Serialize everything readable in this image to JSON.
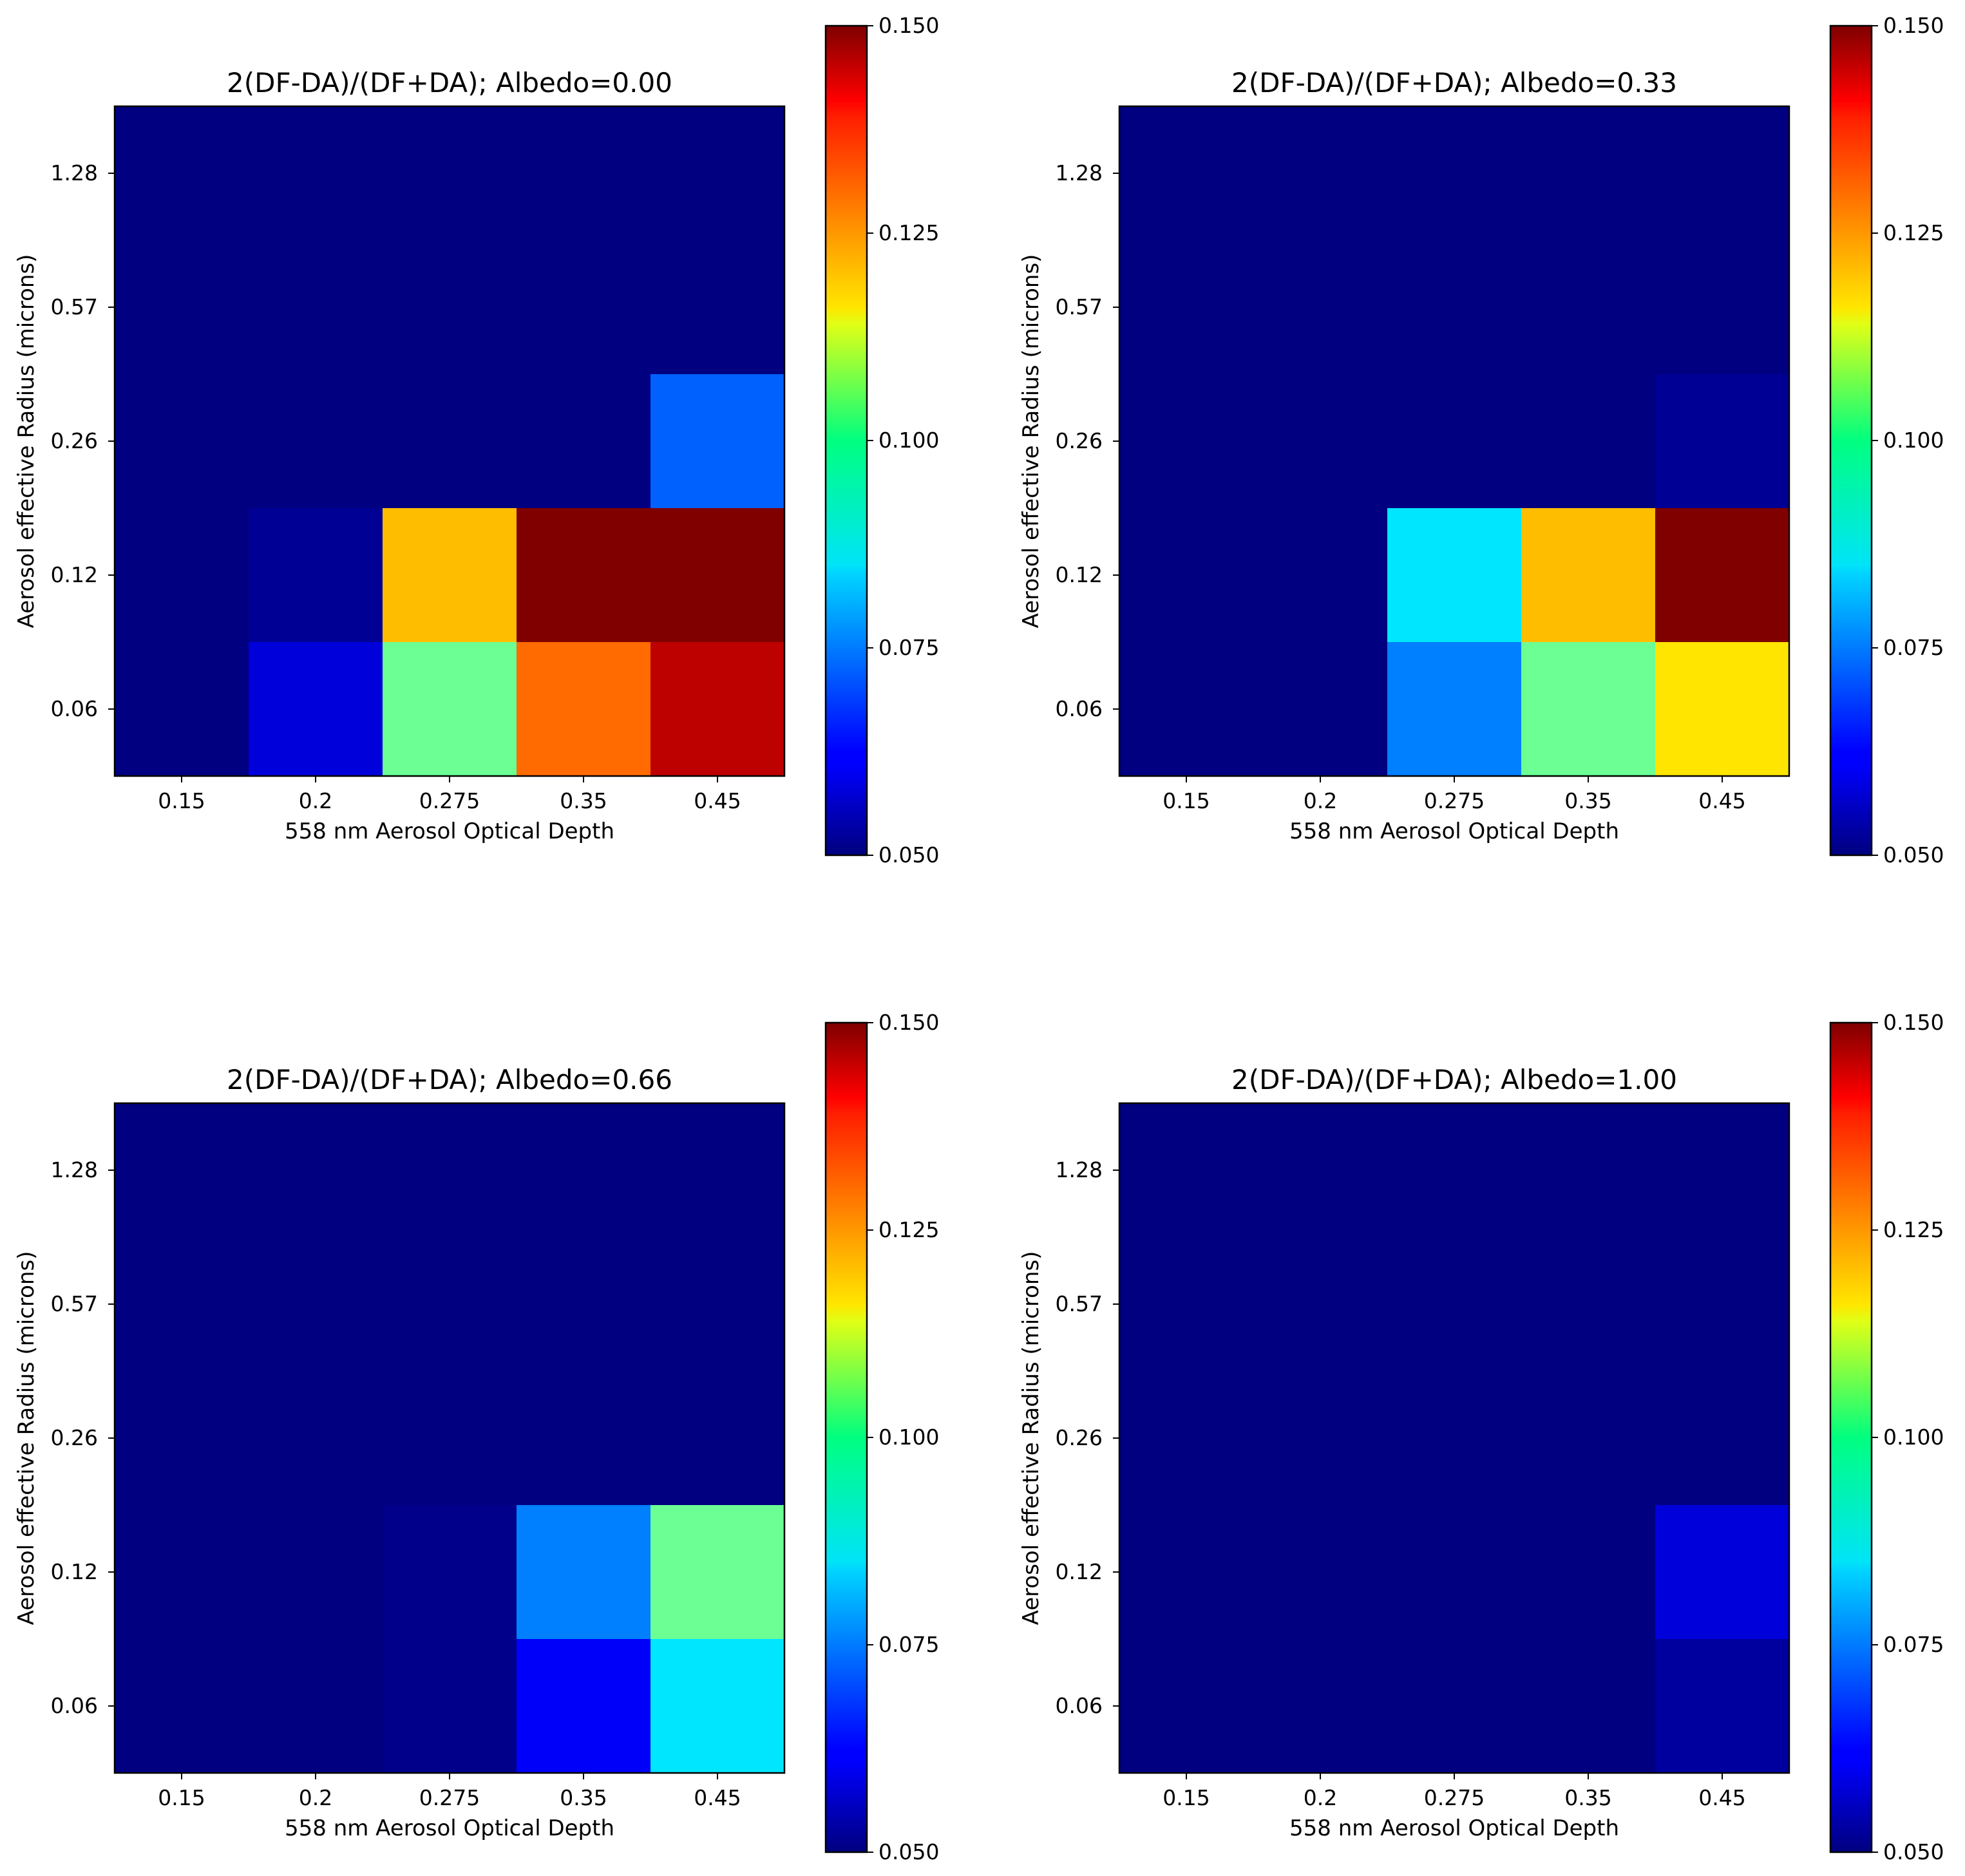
{
  "chart_data": [
    {
      "type": "heatmap",
      "title": "2(DF-DA)/(DF+DA); Albedo=0.00",
      "xlabel": "558 nm Aerosol Optical Depth",
      "ylabel": "Aerosol effective Radius (microns)",
      "x": [
        "0.15",
        "0.2",
        "0.275",
        "0.35",
        "0.45"
      ],
      "y": [
        "1.28",
        "0.57",
        "0.26",
        "0.12",
        "0.06"
      ],
      "values": [
        [
          0.05,
          0.05,
          0.05,
          0.05,
          0.05
        ],
        [
          0.05,
          0.05,
          0.05,
          0.05,
          0.05
        ],
        [
          0.05,
          0.05,
          0.05,
          0.05,
          0.072
        ],
        [
          0.05,
          0.052,
          0.119,
          0.15,
          0.15
        ],
        [
          0.05,
          0.059,
          0.098,
          0.127,
          0.144
        ]
      ],
      "colorbar": {
        "min": 0.05,
        "max": 0.15,
        "ticks": [
          "0.150",
          "0.125",
          "0.100",
          "0.075",
          "0.050"
        ]
      }
    },
    {
      "type": "heatmap",
      "title": "2(DF-DA)/(DF+DA); Albedo=0.33",
      "xlabel": "558 nm Aerosol Optical Depth",
      "ylabel": "Aerosol effective Radius (microns)",
      "x": [
        "0.15",
        "0.2",
        "0.275",
        "0.35",
        "0.45"
      ],
      "y": [
        "1.28",
        "0.57",
        "0.26",
        "0.12",
        "0.06"
      ],
      "values": [
        [
          0.05,
          0.05,
          0.05,
          0.05,
          0.05
        ],
        [
          0.05,
          0.05,
          0.05,
          0.05,
          0.05
        ],
        [
          0.05,
          0.05,
          0.05,
          0.05,
          0.052
        ],
        [
          0.05,
          0.05,
          0.085,
          0.119,
          0.15
        ],
        [
          0.05,
          0.05,
          0.075,
          0.098,
          0.115
        ]
      ],
      "colorbar": {
        "min": 0.05,
        "max": 0.15,
        "ticks": [
          "0.150",
          "0.125",
          "0.100",
          "0.075",
          "0.050"
        ]
      }
    },
    {
      "type": "heatmap",
      "title": "2(DF-DA)/(DF+DA); Albedo=0.66",
      "xlabel": "558 nm Aerosol Optical Depth",
      "ylabel": "Aerosol effective Radius (microns)",
      "x": [
        "0.15",
        "0.2",
        "0.275",
        "0.35",
        "0.45"
      ],
      "y": [
        "1.28",
        "0.57",
        "0.26",
        "0.12",
        "0.06"
      ],
      "values": [
        [
          0.05,
          0.05,
          0.05,
          0.05,
          0.05
        ],
        [
          0.05,
          0.05,
          0.05,
          0.05,
          0.05
        ],
        [
          0.05,
          0.05,
          0.05,
          0.05,
          0.05
        ],
        [
          0.05,
          0.05,
          0.051,
          0.075,
          0.098
        ],
        [
          0.05,
          0.05,
          0.051,
          0.062,
          0.085
        ]
      ],
      "colorbar": {
        "min": 0.05,
        "max": 0.15,
        "ticks": [
          "0.150",
          "0.125",
          "0.100",
          "0.075",
          "0.050"
        ]
      }
    },
    {
      "type": "heatmap",
      "title": "2(DF-DA)/(DF+DA); Albedo=1.00",
      "xlabel": "558 nm Aerosol Optical Depth",
      "ylabel": "Aerosol effective Radius (microns)",
      "x": [
        "0.15",
        "0.2",
        "0.275",
        "0.35",
        "0.45"
      ],
      "y": [
        "1.28",
        "0.57",
        "0.26",
        "0.12",
        "0.06"
      ],
      "values": [
        [
          0.05,
          0.05,
          0.05,
          0.05,
          0.05
        ],
        [
          0.05,
          0.05,
          0.05,
          0.05,
          0.05
        ],
        [
          0.05,
          0.05,
          0.05,
          0.05,
          0.05
        ],
        [
          0.05,
          0.05,
          0.05,
          0.05,
          0.059
        ],
        [
          0.05,
          0.05,
          0.05,
          0.05,
          0.053
        ]
      ],
      "colorbar": {
        "min": 0.05,
        "max": 0.15,
        "ticks": [
          "0.150",
          "0.125",
          "0.100",
          "0.075",
          "0.050"
        ]
      }
    }
  ]
}
